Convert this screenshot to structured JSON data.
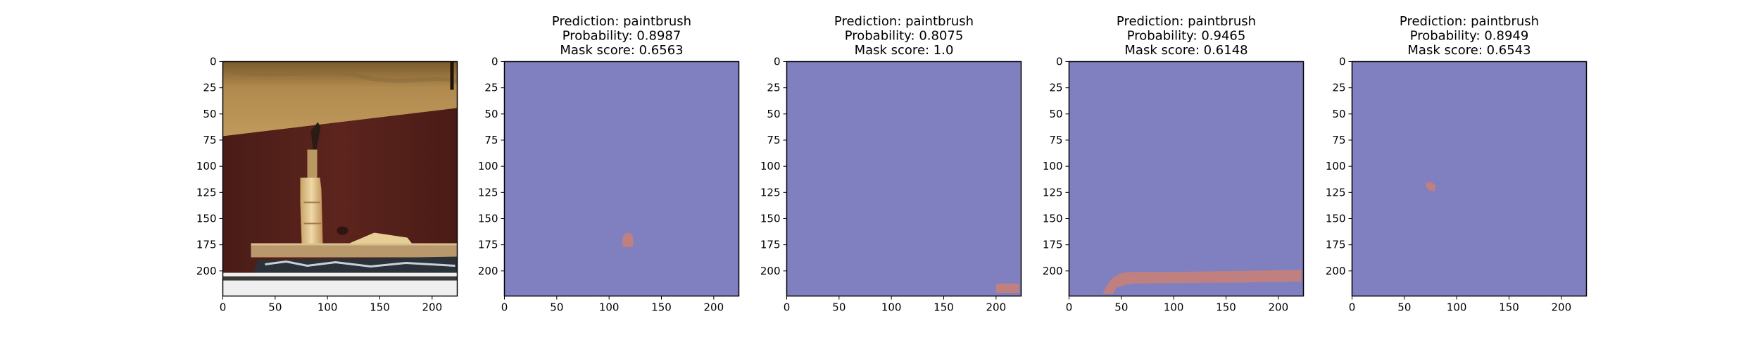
{
  "colors": {
    "mask_background": "#8080c0",
    "mask_foreground": "#c0807f",
    "axes_edge": "#000000"
  },
  "chart_data": [
    {
      "type": "image",
      "title_lines": [],
      "image_content": "photograph of a paintbrush standing on a wooden surface",
      "x_ticks": [
        0,
        50,
        100,
        150,
        200
      ],
      "y_ticks": [
        0,
        25,
        50,
        75,
        100,
        125,
        150,
        175,
        200
      ],
      "xlim": [
        0,
        224
      ],
      "ylim": [
        224,
        0
      ]
    },
    {
      "type": "heatmap",
      "prediction": "paintbrush",
      "probability": 0.8987,
      "mask_score": 0.6563,
      "title_lines": [
        "Prediction: paintbrush",
        "Probability: 0.8987",
        "Mask score: 0.6563"
      ],
      "x_ticks": [
        0,
        50,
        100,
        150,
        200
      ],
      "y_ticks": [
        0,
        25,
        50,
        75,
        100,
        125,
        150,
        175,
        200
      ],
      "xlim": [
        0,
        224
      ],
      "ylim": [
        224,
        0
      ],
      "mask_regions": [
        [
          [
            116,
            164
          ],
          [
            121,
            164
          ],
          [
            123,
            168
          ],
          [
            123,
            177
          ],
          [
            113,
            177
          ],
          [
            113,
            168
          ]
        ]
      ]
    },
    {
      "type": "heatmap",
      "prediction": "paintbrush",
      "probability": 0.8075,
      "mask_score": "1.0",
      "title_lines": [
        "Prediction: paintbrush",
        "Probability: 0.8075",
        "Mask score: 1.0"
      ],
      "x_ticks": [
        0,
        50,
        100,
        150,
        200
      ],
      "y_ticks": [
        0,
        25,
        50,
        75,
        100,
        125,
        150,
        175,
        200
      ],
      "xlim": [
        0,
        224
      ],
      "ylim": [
        224,
        0
      ],
      "mask_regions": [
        [
          [
            200,
            212
          ],
          [
            222,
            212
          ],
          [
            222,
            221
          ],
          [
            200,
            221
          ]
        ]
      ]
    },
    {
      "type": "heatmap",
      "prediction": "paintbrush",
      "probability": 0.9465,
      "mask_score": 0.6148,
      "title_lines": [
        "Prediction: paintbrush",
        "Probability: 0.9465",
        "Mask score: 0.6148"
      ],
      "x_ticks": [
        0,
        50,
        100,
        150,
        200
      ],
      "y_ticks": [
        0,
        25,
        50,
        75,
        100,
        125,
        150,
        175,
        200
      ],
      "xlim": [
        0,
        224
      ],
      "ylim": [
        224,
        0
      ],
      "mask_regions": [
        [
          [
            32,
            222
          ],
          [
            36,
            214
          ],
          [
            42,
            206
          ],
          [
            50,
            202
          ],
          [
            62,
            201
          ],
          [
            100,
            201
          ],
          [
            170,
            200
          ],
          [
            222,
            199
          ],
          [
            222,
            210
          ],
          [
            170,
            211
          ],
          [
            60,
            212
          ],
          [
            52,
            214
          ],
          [
            45,
            216
          ],
          [
            42,
            222
          ]
        ]
      ]
    },
    {
      "type": "heatmap",
      "prediction": "paintbrush",
      "probability": 0.8949,
      "mask_score": 0.6543,
      "title_lines": [
        "Prediction: paintbrush",
        "Probability: 0.8949",
        "Mask score: 0.6543"
      ],
      "x_ticks": [
        0,
        50,
        100,
        150,
        200
      ],
      "y_ticks": [
        0,
        25,
        50,
        75,
        100,
        125,
        150,
        175,
        200
      ],
      "xlim": [
        0,
        224
      ],
      "ylim": [
        224,
        0
      ],
      "mask_regions": [
        [
          [
            70,
            116
          ],
          [
            76,
            115
          ],
          [
            80,
            119
          ],
          [
            79,
            124
          ],
          [
            74,
            123
          ],
          [
            71,
            120
          ]
        ]
      ]
    }
  ]
}
